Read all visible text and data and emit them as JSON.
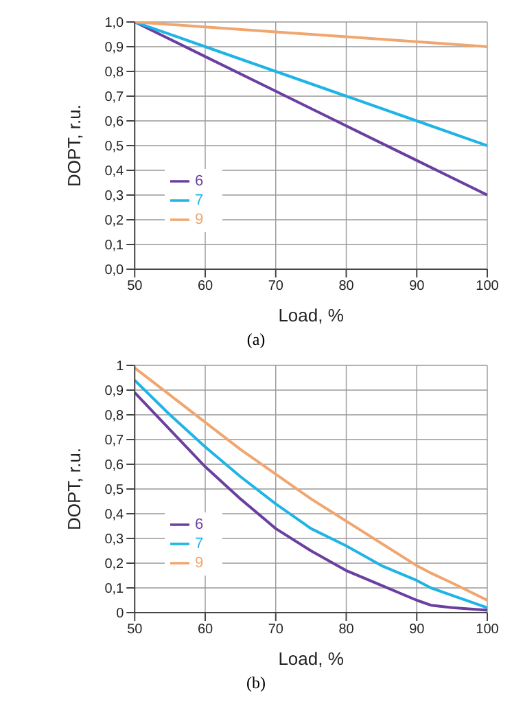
{
  "chart_data": [
    {
      "type": "line",
      "xlabel": "Load, %",
      "ylabel": "DOPT, r.u.",
      "annotations": [
        "(a)"
      ],
      "x": [
        50,
        60,
        70,
        80,
        90,
        100
      ],
      "series": [
        {
          "name": "6",
          "color": "#6a3fa0",
          "values": [
            1.0,
            0.86,
            0.72,
            0.58,
            0.44,
            0.3
          ]
        },
        {
          "name": "7",
          "color": "#1eb4e6",
          "values": [
            1.0,
            0.9,
            0.8,
            0.7,
            0.6,
            0.5
          ]
        },
        {
          "name": "9",
          "color": "#f0a66e",
          "values": [
            1.0,
            0.98,
            0.96,
            0.94,
            0.92,
            0.9
          ]
        }
      ],
      "xlim": [
        50,
        100
      ],
      "xticks": [
        50,
        60,
        70,
        80,
        90,
        100
      ],
      "ylim": [
        0,
        1
      ],
      "yticks": [
        {
          "value": 0,
          "label": "0,0"
        },
        {
          "value": 0.1,
          "label": "0,1"
        },
        {
          "value": 0.2,
          "label": "0,2"
        },
        {
          "value": 0.3,
          "label": "0,3"
        },
        {
          "value": 0.4,
          "label": "0,4"
        },
        {
          "value": 0.5,
          "label": "0,5"
        },
        {
          "value": 0.6,
          "label": "0,6"
        },
        {
          "value": 0.7,
          "label": "0,7"
        },
        {
          "value": 0.8,
          "label": "0,8"
        },
        {
          "value": 0.9,
          "label": "0,9"
        },
        {
          "value": 1,
          "label": "1,0"
        }
      ],
      "grid": true,
      "legend": "left",
      "marker": "none",
      "line_style": "solid"
    },
    {
      "type": "line",
      "xlabel": "Load, %",
      "ylabel": "DOPT, r.u.",
      "annotations": [
        "(b)"
      ],
      "x": [
        50,
        55,
        60,
        65,
        70,
        75,
        80,
        85,
        90,
        92,
        95,
        100
      ],
      "series": [
        {
          "name": "6",
          "color": "#6a3fa0",
          "values": [
            0.89,
            0.74,
            0.59,
            0.46,
            0.34,
            0.25,
            0.17,
            0.11,
            0.05,
            0.03,
            0.02,
            0.01
          ]
        },
        {
          "name": "7",
          "color": "#1eb4e6",
          "values": [
            0.94,
            0.8,
            0.67,
            0.55,
            0.44,
            0.34,
            0.27,
            0.19,
            0.13,
            0.1,
            0.07,
            0.02
          ]
        },
        {
          "name": "9",
          "color": "#f0a66e",
          "values": [
            0.99,
            0.88,
            0.77,
            0.66,
            0.56,
            0.46,
            0.37,
            0.28,
            0.19,
            0.16,
            0.12,
            0.05
          ]
        }
      ],
      "xlim": [
        50,
        100
      ],
      "xticks": [
        50,
        60,
        70,
        80,
        90,
        100
      ],
      "ylim": [
        0,
        1
      ],
      "yticks": [
        0,
        {
          "value": 0.1,
          "label": "0,1"
        },
        {
          "value": 0.2,
          "label": "0,2"
        },
        {
          "value": 0.3,
          "label": "0,3"
        },
        {
          "value": 0.4,
          "label": "0,4"
        },
        {
          "value": 0.5,
          "label": "0,5"
        },
        {
          "value": 0.6,
          "label": "0,6"
        },
        {
          "value": 0.7,
          "label": "0,7"
        },
        {
          "value": 0.8,
          "label": "0,8"
        },
        {
          "value": 0.9,
          "label": "0,9"
        },
        1
      ],
      "grid": true,
      "legend": "left",
      "marker": "none",
      "line_style": "solid"
    }
  ]
}
